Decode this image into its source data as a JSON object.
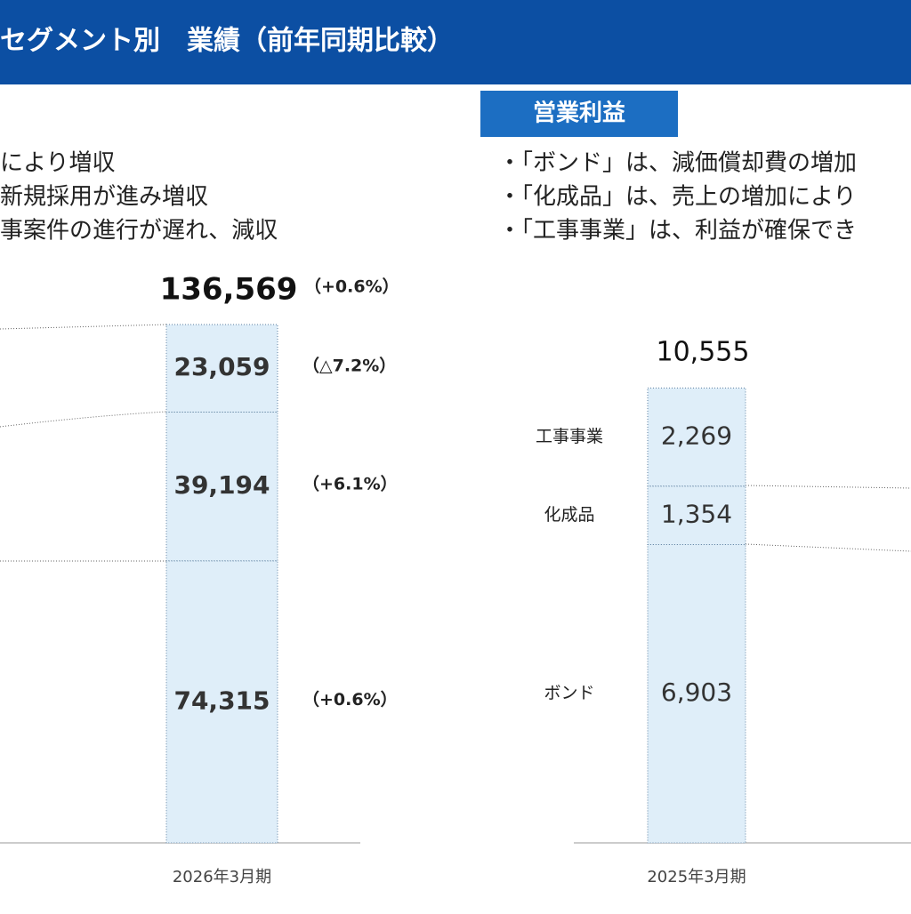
{
  "header": {
    "title": "セグメント別　業績（前年同期比較）"
  },
  "left_bullets": [
    "により増収",
    "新規採用が進み増収",
    "事案件の進行が遅れ、減収"
  ],
  "right_section": {
    "heading": "営業利益",
    "bullets": [
      "・「ボンド」は、減価償却費の増加",
      "・「化成品」は、売上の増加により",
      "・「工事事業」は、利益が確保でき"
    ]
  },
  "chart_data": [
    {
      "type": "stacked-bar",
      "categories": [
        "2026年3月期"
      ],
      "totals": [
        136569
      ],
      "total_labels": [
        "136,569"
      ],
      "total_change_labels": [
        "（+0.6%）"
      ],
      "color": "#dfeef9",
      "series": [
        {
          "values": [
            74315
          ],
          "value_labels": [
            "74,315"
          ],
          "change_labels": [
            "（+0.6%）"
          ]
        },
        {
          "values": [
            39194
          ],
          "value_labels": [
            "39,194"
          ],
          "change_labels": [
            "（+6.1%）"
          ]
        },
        {
          "values": [
            23059
          ],
          "value_labels": [
            "23,059"
          ],
          "change_labels": [
            "（△7.2%）"
          ]
        }
      ]
    },
    {
      "type": "stacked-bar",
      "categories": [
        "2025年3月期"
      ],
      "totals": [
        10555
      ],
      "total_labels": [
        "10,555"
      ],
      "color": "#dfeef9",
      "series": [
        {
          "name": "ボンド",
          "values": [
            6903
          ],
          "value_labels": [
            "6,903"
          ]
        },
        {
          "name": "化成品",
          "values": [
            1354
          ],
          "value_labels": [
            "1,354"
          ]
        },
        {
          "name": "工事事業",
          "values": [
            2269
          ],
          "value_labels": [
            "2,269"
          ]
        }
      ]
    }
  ]
}
